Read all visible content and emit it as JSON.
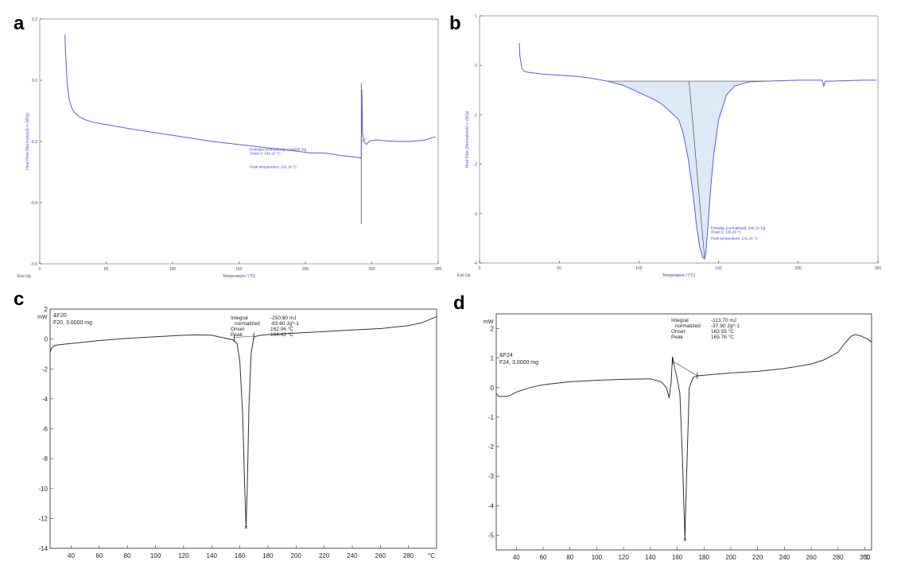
{
  "panels": [
    {
      "letter": "a",
      "chart_data": {
        "type": "line",
        "xlabel": "Temperature  /  (°C)",
        "ylabel": "Heat Flow (Normalized)  ⇐  (W/g)",
        "corner_label": "Exo Up",
        "xlim": [
          0,
          300
        ],
        "ylim": [
          -0.6,
          0.2
        ],
        "xticks": [
          0,
          50,
          100,
          150,
          200,
          250,
          300
        ],
        "yticks": [
          0.2,
          0.0,
          -0.2,
          -0.4,
          -0.6
        ],
        "ytick_labels": [
          "0.2",
          "0.0",
          "-0.2",
          "-0.4",
          "-0.6"
        ],
        "series": [
          {
            "color": "#5b5bd6",
            "x": [
              19,
              19.3,
              20.5,
              22,
              24,
              26,
              30,
              35,
              40,
              50,
              70,
              100,
              130,
              160,
              190,
              205,
              215,
              225,
              235,
              241,
              242.1,
              242.5,
              243,
              244,
              246,
              248,
              250,
              255,
              260,
              270,
              280,
              290,
              298
            ],
            "y": [
              0.15,
              0.1,
              0.0,
              -0.06,
              -0.09,
              -0.105,
              -0.12,
              -0.13,
              -0.137,
              -0.145,
              -0.16,
              -0.18,
              -0.2,
              -0.215,
              -0.23,
              -0.238,
              -0.238,
              -0.245,
              -0.25,
              -0.253,
              -0.255,
              -0.03,
              -0.17,
              -0.2,
              -0.21,
              -0.2,
              -0.197,
              -0.195,
              -0.198,
              -0.2,
              -0.2,
              -0.195,
              -0.185
            ]
          }
        ],
        "annotations": [
          "Enthalpy (normalized): 0.64925 J/g",
          "Onset x: 242.10 °C",
          "Peak temperature: 242.16 °C"
        ]
      }
    },
    {
      "letter": "b",
      "chart_data": {
        "type": "area",
        "xlabel": "Temperature  /  (°C)",
        "ylabel": "Heat Flow (Normalized)  ⇐  (W/g)",
        "corner_label": "Exo Up",
        "xlim": [
          0,
          250
        ],
        "ylim": [
          -4,
          1
        ],
        "xticks": [
          0,
          50,
          100,
          150,
          200,
          250
        ],
        "yticks": [
          1,
          0,
          -1,
          -2,
          -3,
          -4
        ],
        "ytick_labels": [
          "1",
          "0",
          "-1",
          "-2",
          "-3",
          "-4"
        ],
        "series": [
          {
            "color": "#5b5bd6",
            "x": [
              25,
              25.3,
              26.5,
              28,
              30,
              40,
              50,
              60,
              70,
              80,
              90,
              100,
              110,
              115,
              120,
              125,
              128,
              131,
              134,
              136,
              138,
              140,
              141.2,
              142,
              143,
              145,
              147,
              150,
              155,
              160,
              165,
              170,
              180,
              190,
              200,
              210,
              215,
              216,
              217,
              218,
              220,
              230,
              240,
              249
            ],
            "y": [
              0.45,
              0.2,
              -0.05,
              -0.12,
              -0.14,
              -0.18,
              -0.2,
              -0.22,
              -0.26,
              -0.32,
              -0.4,
              -0.55,
              -0.7,
              -0.8,
              -0.95,
              -1.1,
              -1.4,
              -1.9,
              -2.6,
              -3.2,
              -3.65,
              -3.88,
              -3.92,
              -3.8,
              -3.4,
              -2.5,
              -1.8,
              -1.1,
              -0.6,
              -0.42,
              -0.37,
              -0.33,
              -0.32,
              -0.31,
              -0.3,
              -0.3,
              -0.3,
              -0.42,
              -0.32,
              -0.32,
              -0.32,
              -0.31,
              -0.3,
              -0.3
            ]
          }
        ],
        "annotations": [
          "Enthalpy (normalized): 346.14 J/g",
          "Onset x: 136.20 °C",
          "Peak temperature: 141.18 °C"
        ]
      }
    },
    {
      "letter": "c",
      "chart_data": {
        "type": "line",
        "xlabel": "°C",
        "ylabel": "mW",
        "xlim": [
          25,
          300
        ],
        "ylim": [
          -14,
          2
        ],
        "xticks": [
          40,
          60,
          80,
          100,
          120,
          140,
          160,
          180,
          200,
          220,
          240,
          260,
          280
        ],
        "yticks": [
          2,
          0,
          -2,
          -4,
          -6,
          -8,
          -10,
          -12,
          -14
        ],
        "ytick_labels": [
          "2",
          "0",
          "-2",
          "-4",
          "-6",
          "-8",
          "-10",
          "-12",
          "-14"
        ],
        "series": [
          {
            "color": "#333333",
            "x": [
              25,
              26,
              28,
              30,
              40,
              60,
              80,
              100,
              120,
              130,
              140,
              150,
              155,
              158,
              160,
              162,
              163.5,
              164.43,
              165.3,
              166.5,
              168,
              170,
              175,
              180,
              200,
              220,
              240,
              260,
              280,
              290,
              300
            ],
            "y": [
              -0.9,
              -0.6,
              -0.45,
              -0.4,
              -0.3,
              -0.1,
              0.05,
              0.15,
              0.25,
              0.28,
              0.25,
              0.05,
              -0.05,
              -0.3,
              -1.5,
              -5,
              -10,
              -12.6,
              -10,
              -4.5,
              -1,
              0.15,
              0.25,
              0.3,
              0.4,
              0.5,
              0.6,
              0.7,
              0.9,
              1.1,
              1.5
            ]
          }
        ],
        "text_lines": [
          "&F20",
          "F20, 3.0000 mg"
        ],
        "integration": {
          "labels": [
            "Integral",
            "normalized",
            "Onset",
            "Peak"
          ],
          "values": [
            "-250.80 mJ",
            "-83.60 Jg^-1",
            "162.06 °C",
            "164.43 °C"
          ]
        }
      }
    },
    {
      "letter": "d",
      "chart_data": {
        "type": "line",
        "xlabel": "°C",
        "ylabel": "mW",
        "xlim": [
          25,
          305
        ],
        "ylim": [
          -5.5,
          2.5
        ],
        "xticks": [
          40,
          60,
          80,
          100,
          120,
          140,
          160,
          180,
          200,
          220,
          240,
          260,
          280,
          300
        ],
        "yticks": [
          2,
          1,
          0,
          -1,
          -2,
          -3,
          -4,
          -5
        ],
        "ytick_labels": [
          "2",
          "1",
          "0",
          "-1",
          "-2",
          "-3",
          "-4",
          "-5"
        ],
        "series": [
          {
            "color": "#333333",
            "x": [
              25,
              27,
              30,
              33,
              36,
              40,
              50,
              60,
              80,
              100,
              120,
              140,
              148,
              152,
              154,
              155.5,
              156.5,
              158,
              160,
              162,
              164,
              165.76,
              167,
              169,
              172,
              175,
              180,
              200,
              220,
              240,
              260,
              270,
              280,
              285,
              290,
              293,
              297,
              302,
              305
            ],
            "y": [
              -0.2,
              -0.3,
              -0.3,
              -0.3,
              -0.25,
              -0.15,
              0.0,
              0.1,
              0.2,
              0.25,
              0.28,
              0.3,
              0.2,
              0.0,
              -0.35,
              0.2,
              1.05,
              0.7,
              0.3,
              -0.2,
              -2.5,
              -5.15,
              -3.0,
              0.0,
              0.35,
              0.4,
              0.42,
              0.5,
              0.55,
              0.65,
              0.8,
              0.95,
              1.2,
              1.5,
              1.75,
              1.8,
              1.75,
              1.65,
              1.55
            ]
          }
        ],
        "text_lines": [
          "&F24",
          "F24, 3.0000 mg"
        ],
        "integration": {
          "labels": [
            "Integral",
            "normalized",
            "Onset",
            "Peak"
          ],
          "values": [
            "-113.70 mJ",
            "-37.90 Jg^-1",
            "163.55 °C",
            "165.76 °C"
          ]
        }
      }
    }
  ]
}
